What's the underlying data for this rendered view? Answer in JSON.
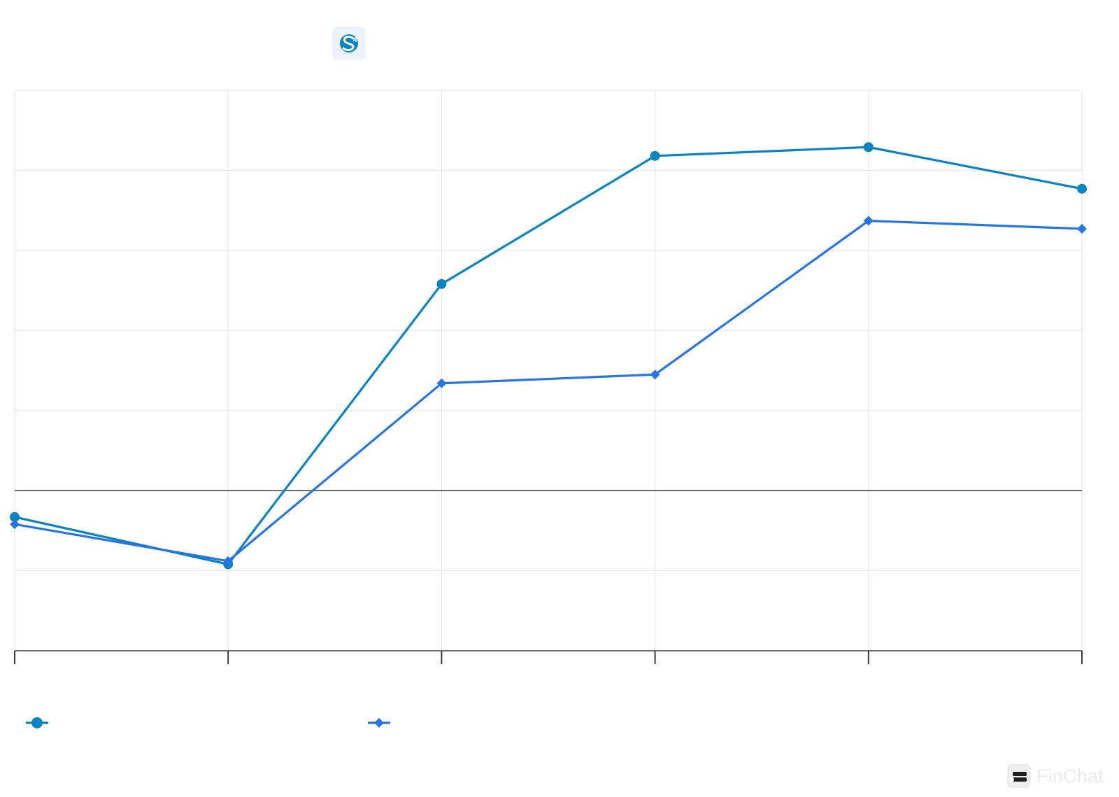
{
  "chart_data": {
    "type": "line",
    "title": "",
    "xlabel": "",
    "ylabel": "",
    "categories": [
      "",
      "",
      "",
      "",
      "",
      ""
    ],
    "ylim": [
      -2,
      5
    ],
    "grid": true,
    "legend_placement": "bottom-left",
    "series": [
      {
        "name": "",
        "marker": "circle",
        "color": "#0a84c1",
        "values": [
          -0.33,
          -0.92,
          2.58,
          4.18,
          4.29,
          3.77
        ]
      },
      {
        "name": "",
        "marker": "diamond",
        "color": "#2874e3",
        "values": [
          -0.42,
          -0.88,
          1.34,
          1.45,
          3.37,
          3.27
        ]
      }
    ]
  },
  "logo": {
    "icon": "company-logo-icon",
    "color": "#0a84c1",
    "background": "#ebf2fa"
  },
  "brand": {
    "icon": "finchat-logo-icon",
    "label": "FinChat"
  }
}
